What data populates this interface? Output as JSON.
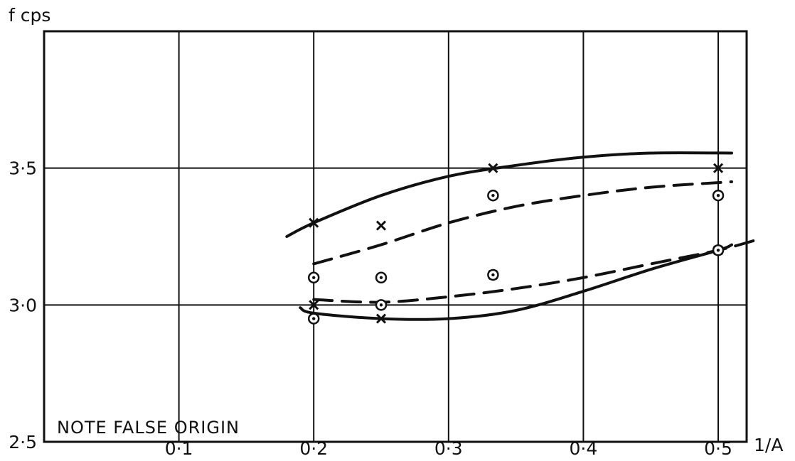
{
  "chart_data": {
    "type": "scatter",
    "y_axis_label": "f cps",
    "x_axis_label": "1/A",
    "annotation": "NOTE FALSE ORIGIN",
    "xlim": [
      0,
      0.5
    ],
    "ylim": [
      2.5,
      4.0
    ],
    "x_ticks": [
      {
        "value": 0.1,
        "label": "0·1"
      },
      {
        "value": 0.2,
        "label": "0·2"
      },
      {
        "value": 0.3,
        "label": "0·3"
      },
      {
        "value": 0.4,
        "label": "0·4"
      },
      {
        "value": 0.5,
        "label": "0·5"
      }
    ],
    "y_ticks": [
      {
        "value": 2.5,
        "label": "2·5"
      },
      {
        "value": 3.0,
        "label": "3·0"
      },
      {
        "value": 3.5,
        "label": "3·5"
      }
    ],
    "grid": true,
    "marker_sets": [
      {
        "marker": "x",
        "points": [
          {
            "x": 0.2,
            "y": 3.3
          },
          {
            "x": 0.25,
            "y": 3.29
          },
          {
            "x": 0.333,
            "y": 3.5
          },
          {
            "x": 0.5,
            "y": 3.5
          },
          {
            "x": 0.2,
            "y": 3.0
          },
          {
            "x": 0.25,
            "y": 2.95
          },
          {
            "x": 0.333,
            "y": 3.11
          },
          {
            "x": 0.5,
            "y": 3.2
          }
        ]
      },
      {
        "marker": "circle-dot",
        "points": [
          {
            "x": 0.2,
            "y": 3.1
          },
          {
            "x": 0.25,
            "y": 3.1
          },
          {
            "x": 0.333,
            "y": 3.4
          },
          {
            "x": 0.5,
            "y": 3.4
          },
          {
            "x": 0.2,
            "y": 2.95
          },
          {
            "x": 0.25,
            "y": 3.0
          },
          {
            "x": 0.333,
            "y": 3.11
          },
          {
            "x": 0.5,
            "y": 3.2
          }
        ]
      }
    ],
    "curves": [
      {
        "style": "solid",
        "points": [
          [
            0.18,
            3.25
          ],
          [
            0.2,
            3.3
          ],
          [
            0.25,
            3.4
          ],
          [
            0.3,
            3.47
          ],
          [
            0.35,
            3.51
          ],
          [
            0.4,
            3.54
          ],
          [
            0.45,
            3.555
          ],
          [
            0.51,
            3.555
          ]
        ]
      },
      {
        "style": "dashed",
        "points": [
          [
            0.2,
            3.15
          ],
          [
            0.25,
            3.22
          ],
          [
            0.3,
            3.3
          ],
          [
            0.35,
            3.36
          ],
          [
            0.4,
            3.4
          ],
          [
            0.45,
            3.43
          ],
          [
            0.51,
            3.45
          ]
        ]
      },
      {
        "style": "dashed",
        "points": [
          [
            0.2,
            3.02
          ],
          [
            0.25,
            3.01
          ],
          [
            0.3,
            3.03
          ],
          [
            0.35,
            3.06
          ],
          [
            0.4,
            3.1
          ],
          [
            0.45,
            3.15
          ],
          [
            0.5,
            3.2
          ],
          [
            0.53,
            3.24
          ]
        ]
      },
      {
        "style": "solid",
        "points": [
          [
            0.19,
            2.99
          ],
          [
            0.2,
            2.97
          ],
          [
            0.25,
            2.95
          ],
          [
            0.3,
            2.95
          ],
          [
            0.35,
            2.98
          ],
          [
            0.4,
            3.05
          ],
          [
            0.45,
            3.13
          ],
          [
            0.5,
            3.2
          ],
          [
            0.51,
            3.22
          ]
        ]
      }
    ]
  }
}
